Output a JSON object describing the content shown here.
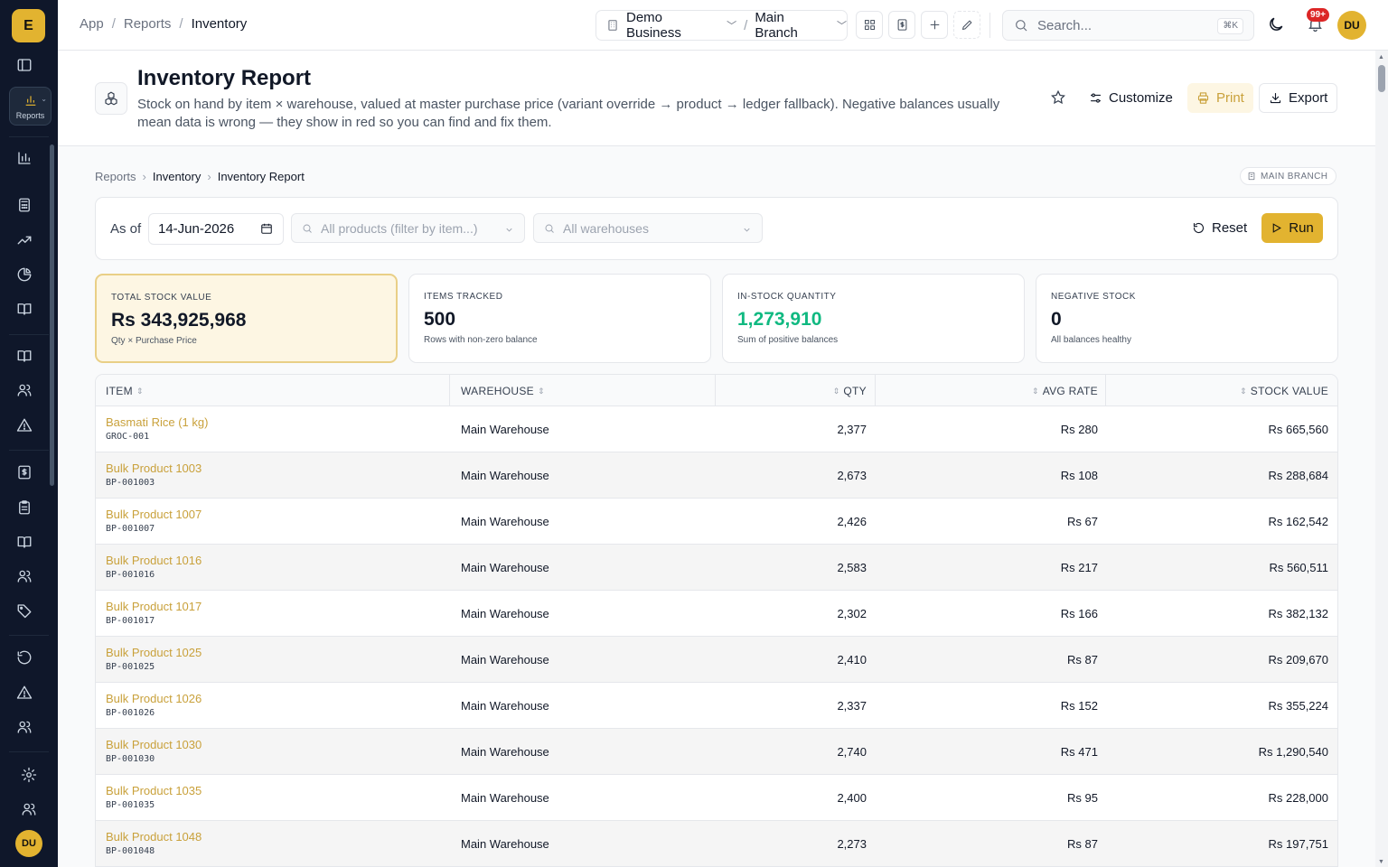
{
  "app": {
    "logo_letter": "E",
    "user_initials": "DU"
  },
  "sidebar": {
    "active_label": "Reports"
  },
  "topbar": {
    "breadcrumb": [
      "App",
      "Reports",
      "Inventory"
    ],
    "business": "Demo Business",
    "branch": "Main Branch",
    "search_placeholder": "Search...",
    "search_shortcut": "⌘K",
    "notifications_badge": "99+"
  },
  "header": {
    "title": "Inventory Report",
    "description": "Stock on hand by item × warehouse, valued at master purchase price (variant override → product → ledger fallback). Negative balances usually mean data is wrong — they show in red so you can find and fix them.",
    "customize_label": "Customize",
    "print_label": "Print",
    "export_label": "Export"
  },
  "page_breadcrumb": [
    "Reports",
    "Inventory",
    "Inventory Report"
  ],
  "branch_badge": "MAIN BRANCH",
  "filters": {
    "as_of_label": "As of",
    "date_value": "14-Jun-2026",
    "products_placeholder": "All products (filter by item...)",
    "warehouses_placeholder": "All warehouses",
    "reset_label": "Reset",
    "run_label": "Run"
  },
  "cards": [
    {
      "label": "TOTAL STOCK VALUE",
      "value": "Rs 343,925,968",
      "sub": "Qty × Purchase Price"
    },
    {
      "label": "ITEMS TRACKED",
      "value": "500",
      "sub": "Rows with non-zero balance"
    },
    {
      "label": "IN-STOCK QUANTITY",
      "value": "1,273,910",
      "sub": "Sum of positive balances"
    },
    {
      "label": "NEGATIVE STOCK",
      "value": "0",
      "sub": "All balances healthy"
    }
  ],
  "table": {
    "columns": {
      "item": "ITEM",
      "warehouse": "WAREHOUSE",
      "qty": "QTY",
      "avg_rate": "AVG RATE",
      "stock_value": "STOCK VALUE"
    },
    "rows": [
      {
        "name": "Basmati Rice (1 kg)",
        "sku": "GROC-001",
        "warehouse": "Main Warehouse",
        "qty": "2,377",
        "rate": "Rs 280",
        "value": "Rs 665,560"
      },
      {
        "name": "Bulk Product 1003",
        "sku": "BP-001003",
        "warehouse": "Main Warehouse",
        "qty": "2,673",
        "rate": "Rs 108",
        "value": "Rs 288,684"
      },
      {
        "name": "Bulk Product 1007",
        "sku": "BP-001007",
        "warehouse": "Main Warehouse",
        "qty": "2,426",
        "rate": "Rs 67",
        "value": "Rs 162,542"
      },
      {
        "name": "Bulk Product 1016",
        "sku": "BP-001016",
        "warehouse": "Main Warehouse",
        "qty": "2,583",
        "rate": "Rs 217",
        "value": "Rs 560,511"
      },
      {
        "name": "Bulk Product 1017",
        "sku": "BP-001017",
        "warehouse": "Main Warehouse",
        "qty": "2,302",
        "rate": "Rs 166",
        "value": "Rs 382,132"
      },
      {
        "name": "Bulk Product 1025",
        "sku": "BP-001025",
        "warehouse": "Main Warehouse",
        "qty": "2,410",
        "rate": "Rs 87",
        "value": "Rs 209,670"
      },
      {
        "name": "Bulk Product 1026",
        "sku": "BP-001026",
        "warehouse": "Main Warehouse",
        "qty": "2,337",
        "rate": "Rs 152",
        "value": "Rs 355,224"
      },
      {
        "name": "Bulk Product 1030",
        "sku": "BP-001030",
        "warehouse": "Main Warehouse",
        "qty": "2,740",
        "rate": "Rs 471",
        "value": "Rs 1,290,540"
      },
      {
        "name": "Bulk Product 1035",
        "sku": "BP-001035",
        "warehouse": "Main Warehouse",
        "qty": "2,400",
        "rate": "Rs 95",
        "value": "Rs 228,000"
      },
      {
        "name": "Bulk Product 1048",
        "sku": "BP-001048",
        "warehouse": "Main Warehouse",
        "qty": "2,273",
        "rate": "Rs 87",
        "value": "Rs 197,751"
      }
    ]
  },
  "colors": {
    "accent": "#e2b330",
    "sidebar": "#0f172a",
    "positive": "#10b981",
    "danger": "#dc2626"
  }
}
